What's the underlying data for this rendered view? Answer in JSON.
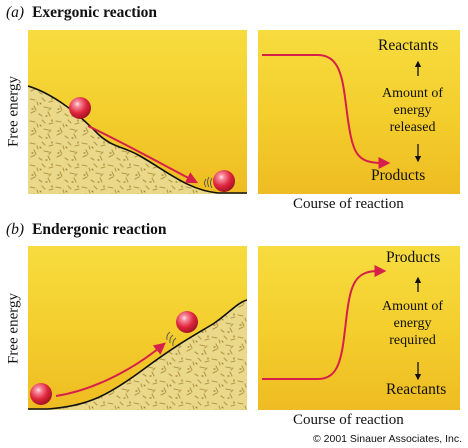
{
  "part_a": {
    "letter": "(a)",
    "title": "Exergonic reaction",
    "y_axis_label": "Free energy",
    "x_axis_label": "Course of reaction",
    "top_label": "Reactants",
    "bottom_label": "Products",
    "amount_label_lines": [
      "Amount of",
      "energy",
      "released"
    ]
  },
  "part_b": {
    "letter": "(b)",
    "title": "Endergonic reaction",
    "y_axis_label": "Free energy",
    "x_axis_label": "Course of reaction",
    "top_label": "Products",
    "bottom_label": "Reactants",
    "amount_label_lines": [
      "Amount of",
      "energy",
      "required"
    ]
  },
  "copyright": "© 2001 Sinauer Associates, Inc.",
  "colors": {
    "panel_top": "#f7dc3f",
    "panel_bottom": "#eebc22",
    "hill_fill": "#ead98b",
    "arrow_red": "#d6204a",
    "ball_red": "#e0263c"
  }
}
